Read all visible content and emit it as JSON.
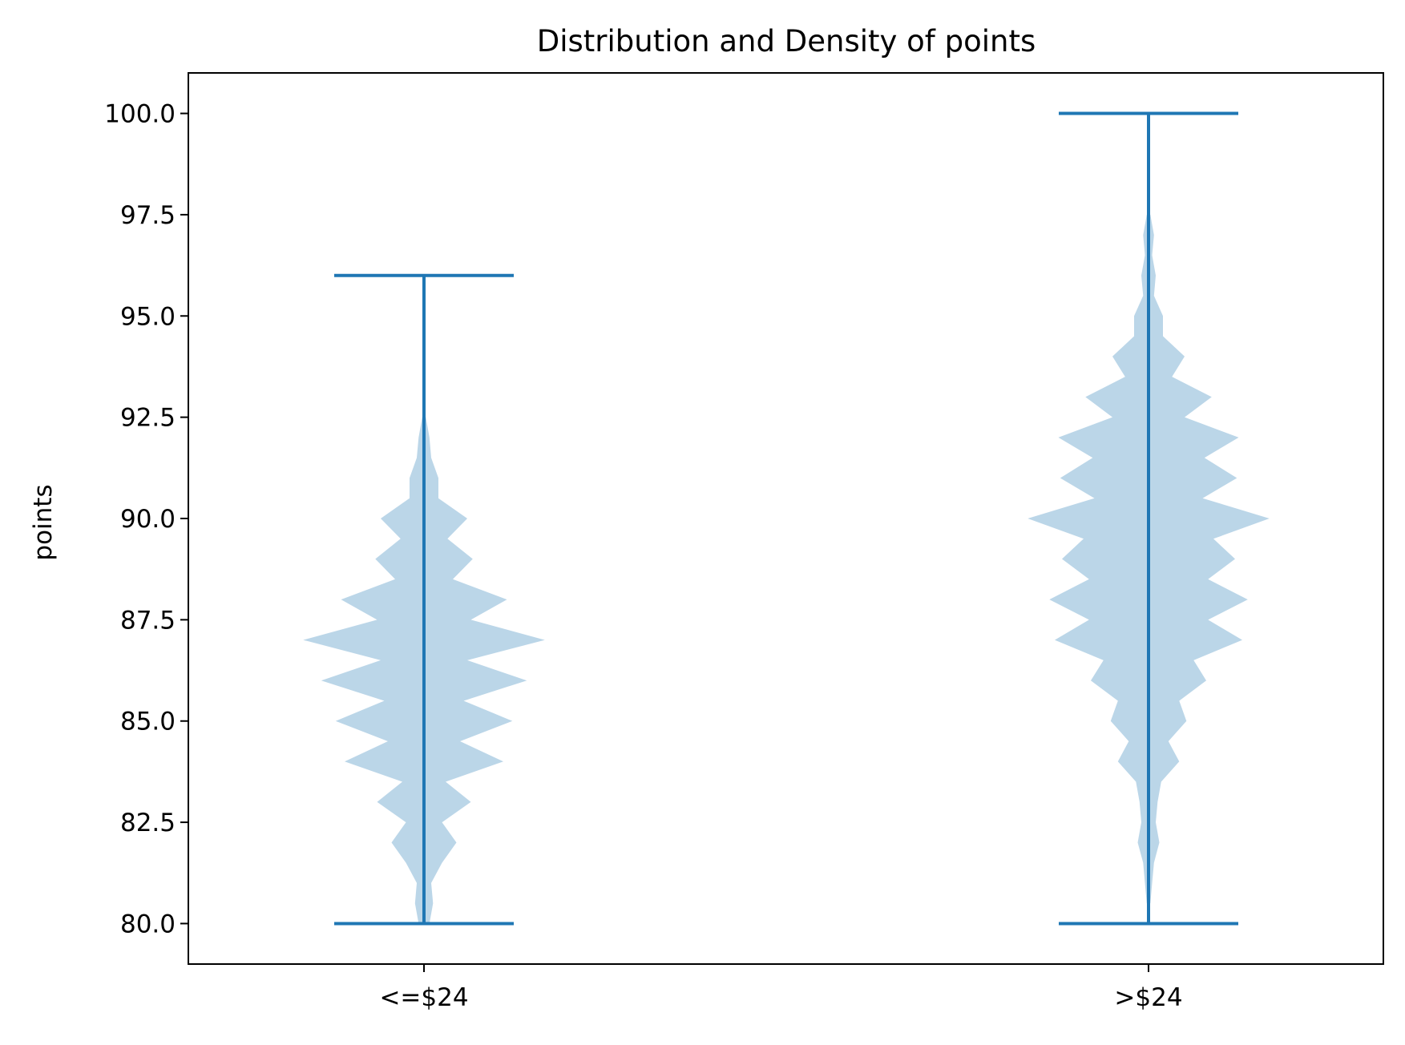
{
  "chart_data": {
    "type": "violin",
    "title": "Distribution and Density of points",
    "xlabel": "",
    "ylabel": "points",
    "ylim": [
      79.0,
      101.0
    ],
    "yticks": [
      80.0,
      82.5,
      85.0,
      87.5,
      90.0,
      92.5,
      95.0,
      97.5,
      100.0
    ],
    "ytick_labels": [
      "80.0",
      "82.5",
      "85.0",
      "87.5",
      "90.0",
      "92.5",
      "95.0",
      "97.5",
      "100.0"
    ],
    "categories": [
      "<=$24",
      ">$24"
    ],
    "colors": {
      "body": "#1f77b4",
      "lines": "#1f77b4",
      "body_alpha": 0.3
    },
    "series": [
      {
        "name": "<=$24",
        "min": 80.0,
        "max": 96.0,
        "density": [
          [
            80.0,
            0.03
          ],
          [
            80.5,
            0.05
          ],
          [
            81.0,
            0.04
          ],
          [
            81.5,
            0.1
          ],
          [
            82.0,
            0.18
          ],
          [
            82.5,
            0.1
          ],
          [
            83.0,
            0.26
          ],
          [
            83.5,
            0.12
          ],
          [
            84.0,
            0.44
          ],
          [
            84.5,
            0.2
          ],
          [
            85.0,
            0.49
          ],
          [
            85.5,
            0.22
          ],
          [
            86.0,
            0.57
          ],
          [
            86.5,
            0.24
          ],
          [
            87.0,
            0.67
          ],
          [
            87.5,
            0.26
          ],
          [
            88.0,
            0.46
          ],
          [
            88.5,
            0.16
          ],
          [
            89.0,
            0.27
          ],
          [
            89.5,
            0.13
          ],
          [
            90.0,
            0.24
          ],
          [
            90.5,
            0.08
          ],
          [
            91.0,
            0.08
          ],
          [
            91.5,
            0.04
          ],
          [
            92.0,
            0.03
          ],
          [
            92.5,
            0.01
          ]
        ]
      },
      {
        "name": ">$24",
        "min": 80.0,
        "max": 100.0,
        "density": [
          [
            80.5,
            0.01
          ],
          [
            81.0,
            0.02
          ],
          [
            81.5,
            0.03
          ],
          [
            82.0,
            0.06
          ],
          [
            82.5,
            0.04
          ],
          [
            83.0,
            0.05
          ],
          [
            83.5,
            0.07
          ],
          [
            84.0,
            0.17
          ],
          [
            84.5,
            0.11
          ],
          [
            85.0,
            0.21
          ],
          [
            85.5,
            0.17
          ],
          [
            86.0,
            0.32
          ],
          [
            86.5,
            0.25
          ],
          [
            87.0,
            0.52
          ],
          [
            87.5,
            0.33
          ],
          [
            88.0,
            0.55
          ],
          [
            88.5,
            0.33
          ],
          [
            89.0,
            0.48
          ],
          [
            89.5,
            0.36
          ],
          [
            90.0,
            0.67
          ],
          [
            90.5,
            0.3
          ],
          [
            91.0,
            0.49
          ],
          [
            91.5,
            0.31
          ],
          [
            92.0,
            0.5
          ],
          [
            92.5,
            0.2
          ],
          [
            93.0,
            0.35
          ],
          [
            93.5,
            0.13
          ],
          [
            94.0,
            0.2
          ],
          [
            94.5,
            0.08
          ],
          [
            95.0,
            0.08
          ],
          [
            95.5,
            0.03
          ],
          [
            96.0,
            0.04
          ],
          [
            96.5,
            0.02
          ],
          [
            97.0,
            0.03
          ],
          [
            97.5,
            0.01
          ]
        ]
      }
    ]
  }
}
